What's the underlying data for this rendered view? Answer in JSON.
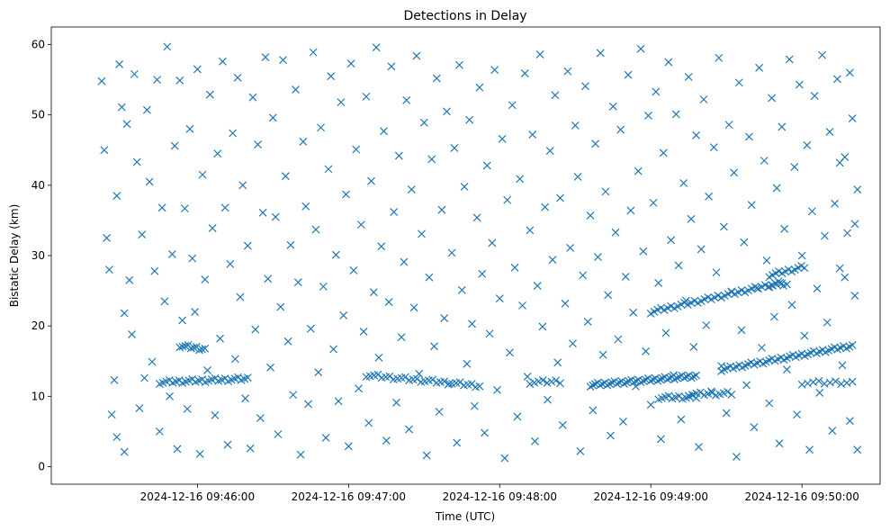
{
  "chart_data": {
    "type": "scatter",
    "title": "Detections in Delay",
    "xlabel": "Time (UTC)",
    "ylabel": "Bistatic Delay (km)",
    "x_units": "seconds after 2024-12-16 09:45:00",
    "xlim": [
      2,
      331
    ],
    "ylim": [
      -2.5,
      62.5
    ],
    "grid": false,
    "marker": "x",
    "color": "#1f77b4",
    "x_ticks": [
      {
        "value": 60,
        "label": "2024-12-16 09:46:00"
      },
      {
        "value": 120,
        "label": "2024-12-16 09:47:00"
      },
      {
        "value": 180,
        "label": "2024-12-16 09:48:00"
      },
      {
        "value": 240,
        "label": "2024-12-16 09:49:00"
      },
      {
        "value": 300,
        "label": "2024-12-16 09:50:00"
      }
    ],
    "y_ticks": [
      {
        "value": 0,
        "label": "0"
      },
      {
        "value": 10,
        "label": "10"
      },
      {
        "value": 20,
        "label": "20"
      },
      {
        "value": 30,
        "label": "30"
      },
      {
        "value": 40,
        "label": "40"
      },
      {
        "value": 50,
        "label": "50"
      },
      {
        "value": 60,
        "label": "60"
      }
    ],
    "tracks": [
      {
        "t": [
          45,
          80
        ],
        "d": [
          12.0,
          12.5
        ],
        "count": 28
      },
      {
        "t": [
          53,
          63
        ],
        "d": [
          17.2,
          16.7
        ],
        "count": 10
      },
      {
        "t": [
          127,
          172
        ],
        "d": [
          13.0,
          11.5
        ],
        "count": 30
      },
      {
        "t": [
          192,
          204
        ],
        "d": [
          12.0,
          12.1
        ],
        "count": 8
      },
      {
        "t": [
          216,
          258
        ],
        "d": [
          11.6,
          12.9
        ],
        "count": 45
      },
      {
        "t": [
          243,
          258
        ],
        "d": [
          9.8,
          9.9
        ],
        "count": 12
      },
      {
        "t": [
          255,
          272
        ],
        "d": [
          10.3,
          10.4
        ],
        "count": 12
      },
      {
        "t": [
          268,
          320
        ],
        "d": [
          13.8,
          17.2
        ],
        "count": 45
      },
      {
        "t": [
          240,
          292
        ],
        "d": [
          22.0,
          26.2
        ],
        "count": 40
      },
      {
        "t": [
          287,
          301
        ],
        "d": [
          27.2,
          28.4
        ],
        "count": 12
      },
      {
        "t": [
          287,
          294
        ],
        "d": [
          25.8,
          25.9
        ],
        "count": 6
      },
      {
        "t": [
          300,
          320
        ],
        "d": [
          11.9,
          12.0
        ],
        "count": 10
      }
    ],
    "points": [
      [
        22,
        54.8
      ],
      [
        23,
        45
      ],
      [
        24,
        32.5
      ],
      [
        25,
        28
      ],
      [
        26,
        7.4
      ],
      [
        27,
        12.3
      ],
      [
        28,
        38.5
      ],
      [
        28,
        4.2
      ],
      [
        29,
        57.2
      ],
      [
        30,
        51.1
      ],
      [
        31,
        21.8
      ],
      [
        31,
        2.1
      ],
      [
        32,
        48.7
      ],
      [
        33,
        26.5
      ],
      [
        34,
        18.8
      ],
      [
        35,
        55.8
      ],
      [
        36,
        43.3
      ],
      [
        37,
        8.3
      ],
      [
        38,
        33
      ],
      [
        39,
        12.6
      ],
      [
        40,
        50.7
      ],
      [
        41,
        40.5
      ],
      [
        42,
        14.9
      ],
      [
        43,
        27.8
      ],
      [
        44,
        55
      ],
      [
        45,
        5
      ],
      [
        46,
        36.8
      ],
      [
        47,
        23.5
      ],
      [
        48,
        59.7
      ],
      [
        49,
        10
      ],
      [
        50,
        30.2
      ],
      [
        51,
        45.6
      ],
      [
        52,
        2.5
      ],
      [
        53,
        54.9
      ],
      [
        54,
        20.8
      ],
      [
        55,
        36.7
      ],
      [
        56,
        8.2
      ],
      [
        57,
        48
      ],
      [
        58,
        29.6
      ],
      [
        59,
        22
      ],
      [
        60,
        56.5
      ],
      [
        61,
        1.8
      ],
      [
        62,
        41.5
      ],
      [
        63,
        26.6
      ],
      [
        64,
        13.7
      ],
      [
        65,
        52.9
      ],
      [
        66,
        33.9
      ],
      [
        67,
        7.3
      ],
      [
        68,
        44.5
      ],
      [
        69,
        18.2
      ],
      [
        70,
        57.6
      ],
      [
        71,
        36.8
      ],
      [
        72,
        3.1
      ],
      [
        73,
        28.8
      ],
      [
        74,
        47.4
      ],
      [
        75,
        15.3
      ],
      [
        76,
        55.3
      ],
      [
        77,
        24.1
      ],
      [
        78,
        40
      ],
      [
        79,
        9.7
      ],
      [
        80,
        31.4
      ],
      [
        81,
        2.6
      ],
      [
        82,
        52.5
      ],
      [
        83,
        19.5
      ],
      [
        84,
        45.8
      ],
      [
        85,
        6.9
      ],
      [
        86,
        36.1
      ],
      [
        87,
        58.2
      ],
      [
        88,
        26.7
      ],
      [
        89,
        14.1
      ],
      [
        90,
        49.6
      ],
      [
        91,
        35.5
      ],
      [
        92,
        4.6
      ],
      [
        93,
        22.7
      ],
      [
        94,
        57.8
      ],
      [
        95,
        41.3
      ],
      [
        96,
        17.8
      ],
      [
        97,
        31.5
      ],
      [
        98,
        10.2
      ],
      [
        99,
        53.6
      ],
      [
        100,
        26.2
      ],
      [
        101,
        1.7
      ],
      [
        102,
        46.2
      ],
      [
        103,
        37
      ],
      [
        104,
        8.9
      ],
      [
        105,
        19.6
      ],
      [
        106,
        58.9
      ],
      [
        107,
        33.7
      ],
      [
        108,
        13.4
      ],
      [
        109,
        48.2
      ],
      [
        110,
        25.6
      ],
      [
        111,
        4.1
      ],
      [
        112,
        42.3
      ],
      [
        113,
        55.5
      ],
      [
        114,
        16.7
      ],
      [
        115,
        30.1
      ],
      [
        116,
        9.3
      ],
      [
        117,
        51.8
      ],
      [
        118,
        21.5
      ],
      [
        119,
        38.7
      ],
      [
        120,
        2.9
      ],
      [
        121,
        57.3
      ],
      [
        122,
        27.9
      ],
      [
        123,
        45.1
      ],
      [
        124,
        11.1
      ],
      [
        125,
        34.4
      ],
      [
        126,
        19.2
      ],
      [
        127,
        52.6
      ],
      [
        128,
        6.2
      ],
      [
        129,
        40.6
      ],
      [
        130,
        24.8
      ],
      [
        131,
        59.6
      ],
      [
        132,
        15.5
      ],
      [
        133,
        31.3
      ],
      [
        134,
        47.7
      ],
      [
        135,
        3.7
      ],
      [
        136,
        23.4
      ],
      [
        137,
        56.9
      ],
      [
        138,
        36.2
      ],
      [
        139,
        9.1
      ],
      [
        140,
        44.2
      ],
      [
        141,
        18.4
      ],
      [
        142,
        29.1
      ],
      [
        143,
        52.1
      ],
      [
        144,
        5.3
      ],
      [
        145,
        39.4
      ],
      [
        146,
        22.6
      ],
      [
        147,
        58.4
      ],
      [
        148,
        13.2
      ],
      [
        149,
        33.1
      ],
      [
        150,
        48.9
      ],
      [
        151,
        1.6
      ],
      [
        152,
        26.9
      ],
      [
        153,
        43.7
      ],
      [
        154,
        17.1
      ],
      [
        155,
        55.2
      ],
      [
        156,
        7.8
      ],
      [
        157,
        36.5
      ],
      [
        158,
        21.1
      ],
      [
        159,
        50.5
      ],
      [
        160,
        11.8
      ],
      [
        161,
        30.4
      ],
      [
        162,
        45.3
      ],
      [
        163,
        3.4
      ],
      [
        164,
        57.1
      ],
      [
        165,
        25.1
      ],
      [
        166,
        39.8
      ],
      [
        167,
        14.6
      ],
      [
        168,
        49.3
      ],
      [
        169,
        20.3
      ],
      [
        170,
        8.6
      ],
      [
        171,
        35.4
      ],
      [
        172,
        53.9
      ],
      [
        173,
        27.4
      ],
      [
        174,
        4.8
      ],
      [
        175,
        42.8
      ],
      [
        176,
        18.9
      ],
      [
        177,
        31.8
      ],
      [
        178,
        56.4
      ],
      [
        179,
        10.9
      ],
      [
        180,
        23.9
      ],
      [
        181,
        46.6
      ],
      [
        182,
        1.2
      ],
      [
        183,
        37.9
      ],
      [
        184,
        16.2
      ],
      [
        185,
        51.4
      ],
      [
        186,
        28.3
      ],
      [
        187,
        7.1
      ],
      [
        188,
        40.9
      ],
      [
        189,
        22.9
      ],
      [
        190,
        55.9
      ],
      [
        191,
        12.8
      ],
      [
        192,
        33.6
      ],
      [
        193,
        47.2
      ],
      [
        194,
        3.6
      ],
      [
        195,
        25.7
      ],
      [
        196,
        58.6
      ],
      [
        197,
        19.9
      ],
      [
        198,
        36.9
      ],
      [
        199,
        9.5
      ],
      [
        200,
        44.9
      ],
      [
        201,
        29.4
      ],
      [
        202,
        52.8
      ],
      [
        203,
        14.8
      ],
      [
        204,
        38.2
      ],
      [
        205,
        5.9
      ],
      [
        206,
        23.2
      ],
      [
        207,
        56.2
      ],
      [
        208,
        31.1
      ],
      [
        209,
        17.5
      ],
      [
        210,
        48.5
      ],
      [
        211,
        41.2
      ],
      [
        212,
        2.2
      ],
      [
        213,
        27.2
      ],
      [
        214,
        54.1
      ],
      [
        215,
        20.6
      ],
      [
        216,
        35.7
      ],
      [
        217,
        8
      ],
      [
        218,
        45.9
      ],
      [
        219,
        29.8
      ],
      [
        220,
        58.8
      ],
      [
        221,
        15.9
      ],
      [
        222,
        39.1
      ],
      [
        223,
        24.4
      ],
      [
        224,
        4.4
      ],
      [
        225,
        51.2
      ],
      [
        226,
        33.3
      ],
      [
        227,
        18.1
      ],
      [
        228,
        47.9
      ],
      [
        229,
        6.4
      ],
      [
        230,
        27
      ],
      [
        231,
        55.7
      ],
      [
        232,
        36.4
      ],
      [
        233,
        21.9
      ],
      [
        234,
        11.4
      ],
      [
        235,
        42
      ],
      [
        236,
        59.4
      ],
      [
        237,
        30.6
      ],
      [
        238,
        16.4
      ],
      [
        239,
        49.9
      ],
      [
        240,
        8.8
      ],
      [
        241,
        37.5
      ],
      [
        242,
        53.3
      ],
      [
        243,
        26.1
      ],
      [
        244,
        3.9
      ],
      [
        245,
        44.6
      ],
      [
        246,
        19
      ],
      [
        247,
        57.5
      ],
      [
        248,
        32.2
      ],
      [
        249,
        13
      ],
      [
        250,
        50.1
      ],
      [
        251,
        28.6
      ],
      [
        252,
        6.7
      ],
      [
        253,
        40.3
      ],
      [
        254,
        23.6
      ],
      [
        255,
        55.4
      ],
      [
        256,
        35.2
      ],
      [
        257,
        17
      ],
      [
        258,
        47.1
      ],
      [
        259,
        2.8
      ],
      [
        260,
        30.9
      ],
      [
        261,
        52.2
      ],
      [
        262,
        20.1
      ],
      [
        263,
        38.4
      ],
      [
        264,
        10.7
      ],
      [
        265,
        45.4
      ],
      [
        266,
        27.6
      ],
      [
        267,
        58.1
      ],
      [
        268,
        14.3
      ],
      [
        269,
        34.1
      ],
      [
        270,
        7.6
      ],
      [
        271,
        48.6
      ],
      [
        272,
        24.9
      ],
      [
        273,
        41.8
      ],
      [
        274,
        1.4
      ],
      [
        275,
        54.6
      ],
      [
        276,
        19.4
      ],
      [
        277,
        31.9
      ],
      [
        278,
        11.6
      ],
      [
        279,
        46.9
      ],
      [
        280,
        37.2
      ],
      [
        281,
        5.6
      ],
      [
        282,
        25.4
      ],
      [
        283,
        56.7
      ],
      [
        284,
        16.9
      ],
      [
        285,
        43.5
      ],
      [
        286,
        29.3
      ],
      [
        287,
        9
      ],
      [
        288,
        52.4
      ],
      [
        289,
        21.3
      ],
      [
        290,
        39.6
      ],
      [
        291,
        3.3
      ],
      [
        292,
        48.3
      ],
      [
        293,
        33.8
      ],
      [
        294,
        13.8
      ],
      [
        295,
        57.9
      ],
      [
        296,
        23
      ],
      [
        297,
        42.6
      ],
      [
        298,
        7.4
      ],
      [
        299,
        54.3
      ],
      [
        300,
        30
      ],
      [
        301,
        18.6
      ],
      [
        302,
        45.7
      ],
      [
        303,
        2.4
      ],
      [
        304,
        36.3
      ],
      [
        305,
        52.7
      ],
      [
        306,
        25.3
      ],
      [
        307,
        10.5
      ],
      [
        308,
        58.5
      ],
      [
        309,
        32.8
      ],
      [
        310,
        20.5
      ],
      [
        311,
        47.6
      ],
      [
        312,
        5.1
      ],
      [
        313,
        37.4
      ],
      [
        314,
        55.1
      ],
      [
        315,
        28.2
      ],
      [
        316,
        14.4
      ],
      [
        317,
        44
      ],
      [
        318,
        33.2
      ],
      [
        319,
        6.5
      ],
      [
        320,
        49.5
      ],
      [
        321,
        24.3
      ],
      [
        322,
        39.4
      ],
      [
        322,
        2.4
      ],
      [
        321,
        34.5
      ],
      [
        319,
        56
      ],
      [
        317,
        26.9
      ],
      [
        315,
        43.2
      ]
    ]
  }
}
